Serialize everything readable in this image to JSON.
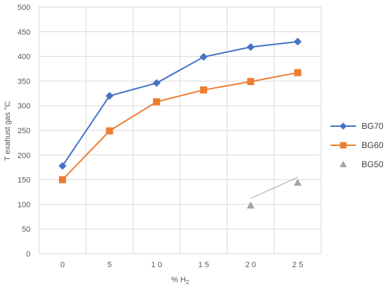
{
  "chart_data": {
    "type": "line",
    "title": "",
    "xlabel": "% H",
    "xlabel_sub": "2",
    "ylabel": "T exahust gas °C",
    "x": [
      0,
      5,
      10,
      15,
      20,
      25
    ],
    "x_tick_labels": [
      "0",
      "5",
      "1 0",
      "1 5",
      "2 0",
      "2 5"
    ],
    "ylim": [
      0,
      500
    ],
    "y_ticks": [
      0,
      50,
      100,
      150,
      200,
      250,
      300,
      350,
      400,
      450,
      500
    ],
    "grid": true,
    "legend_position": "right",
    "series": [
      {
        "name": "BG70",
        "color": "#4472C4",
        "marker": "diamond",
        "line": true,
        "x": [
          0,
          5,
          10,
          15,
          20,
          25
        ],
        "values": [
          178,
          320,
          346,
          399,
          419,
          430
        ]
      },
      {
        "name": "BG60",
        "color": "#ED7D31",
        "marker": "square",
        "line": true,
        "x": [
          0,
          5,
          10,
          15,
          20,
          25
        ],
        "values": [
          150,
          249,
          308,
          332,
          349,
          367
        ]
      },
      {
        "name": "BG50",
        "color": "#A5A5A5",
        "marker": "triangle",
        "line": false,
        "x": [
          20,
          25
        ],
        "values": [
          98,
          144
        ]
      }
    ],
    "trendline": {
      "series": "BG50",
      "color": "#A5A5A5",
      "from": [
        20,
        112
      ],
      "to": [
        25,
        155
      ]
    }
  }
}
